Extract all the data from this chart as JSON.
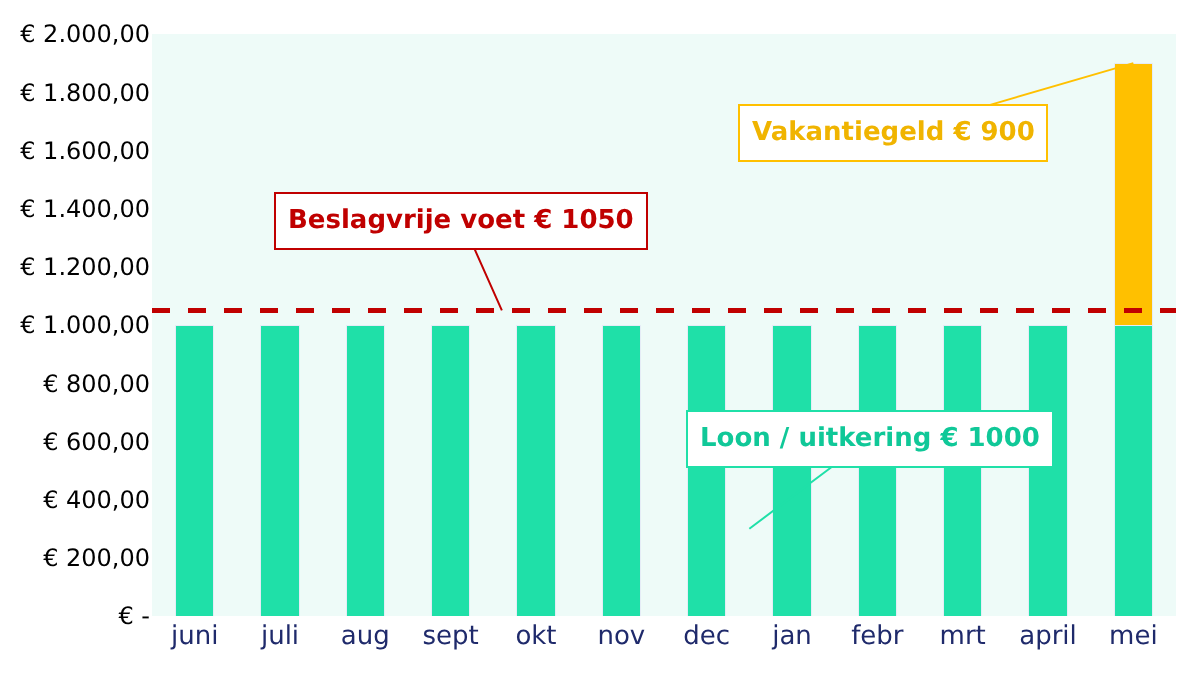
{
  "chart_data": {
    "type": "bar",
    "stacked": true,
    "categories": [
      "juni",
      "juli",
      "aug",
      "sept",
      "okt",
      "nov",
      "dec",
      "jan",
      "febr",
      "mrt",
      "april",
      "mei"
    ],
    "series": [
      {
        "color": "#1fe0a8",
        "values": [
          1000,
          1000,
          1000,
          1000,
          1000,
          1000,
          1000,
          1000,
          1000,
          1000,
          1000,
          1000
        ]
      },
      {
        "color": "#ffc000",
        "values": [
          null,
          null,
          null,
          null,
          null,
          null,
          null,
          null,
          null,
          null,
          null,
          900
        ]
      }
    ],
    "ylim": [
      0,
      2000
    ],
    "yticks": [
      {
        "value": 0,
        "label": "€ -"
      },
      {
        "value": 200,
        "label": "€ 200,00"
      },
      {
        "value": 400,
        "label": "€ 400,00"
      },
      {
        "value": 600,
        "label": "€ 600,00"
      },
      {
        "value": 800,
        "label": "€ 800,00"
      },
      {
        "value": 1000,
        "label": "€ 1.000,00"
      },
      {
        "value": 1200,
        "label": "€ 1.200,00"
      },
      {
        "value": 1400,
        "label": "€ 1.400,00"
      },
      {
        "value": 1600,
        "label": "€ 1.600,00"
      },
      {
        "value": 1800,
        "label": "€ 1.800,00"
      },
      {
        "value": 2000,
        "label": "€ 2.000,00"
      }
    ],
    "ref_lines": [
      {
        "axis": "y",
        "value": 1050,
        "label": "Beslagvrije voet € 1050",
        "color": "#c00000",
        "line_style": "dashed"
      }
    ],
    "annotations": [
      {
        "text": "Vakantiegeld € 900",
        "x": "mei",
        "y": 1900
      },
      "Loon / uitkering € 1000"
    ],
    "grid": false
  }
}
